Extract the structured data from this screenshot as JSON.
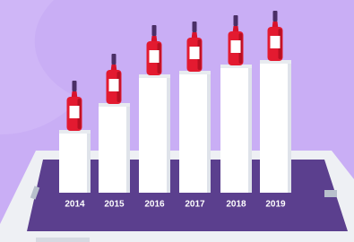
{
  "labels": [
    "2014",
    "2015",
    "2016",
    "2017",
    "2018",
    "2019"
  ]
}
